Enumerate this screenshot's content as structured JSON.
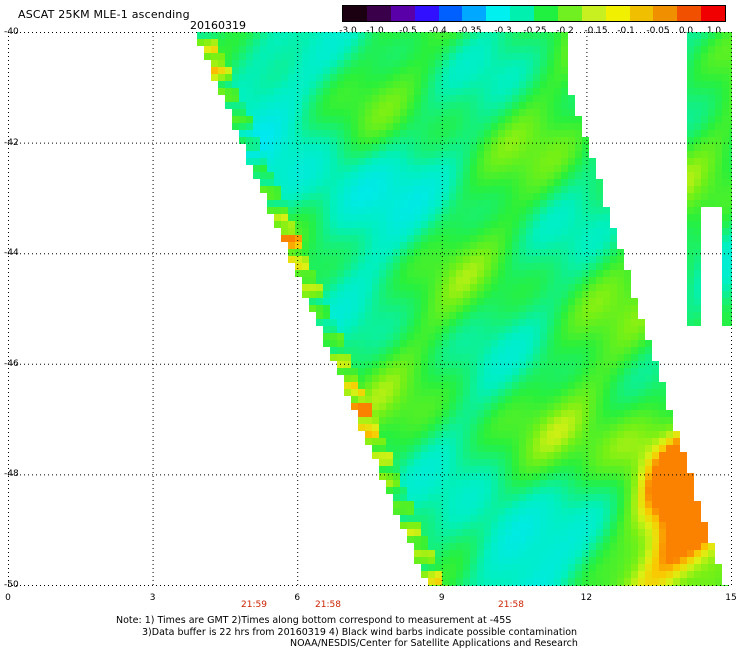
{
  "header": {
    "title": "ASCAT 25KM MLE-1 ascending",
    "date": "20160319"
  },
  "colorbar": {
    "labels": [
      "-3.0",
      "-1.0",
      "-0.5",
      "-0.4",
      "-0.35",
      "-0.3",
      "-0.25",
      "-0.2",
      "-0.15",
      "-0.1",
      "-0.05",
      "0.0",
      "1.0"
    ],
    "colors": [
      "#1a0010",
      "#3a004a",
      "#5a00a8",
      "#3010ff",
      "#0060ff",
      "#00a8ff",
      "#00f0f0",
      "#00f0b0",
      "#20f040",
      "#70f020",
      "#c8f020",
      "#f0f000",
      "#f0c000",
      "#f09000",
      "#f05000",
      "#f00000"
    ]
  },
  "axes": {
    "y_labels": [
      "-40",
      "-42",
      "-44",
      "-46",
      "-48",
      "-50"
    ],
    "x_labels": [
      "0",
      "3",
      "6",
      "9",
      "12",
      "15"
    ],
    "time_labels": [
      "21:59",
      "21:58",
      "21:58"
    ]
  },
  "notes": {
    "line1": "Note: 1) Times are GMT 2)Times along bottom correspond to measurement at -45S",
    "line2": "3)Data buffer is 22 hrs from 20160319 4) Black wind barbs indicate possible contamination",
    "line3": "NOAA/NESDIS/Center for Satellite Applications and Research"
  }
}
